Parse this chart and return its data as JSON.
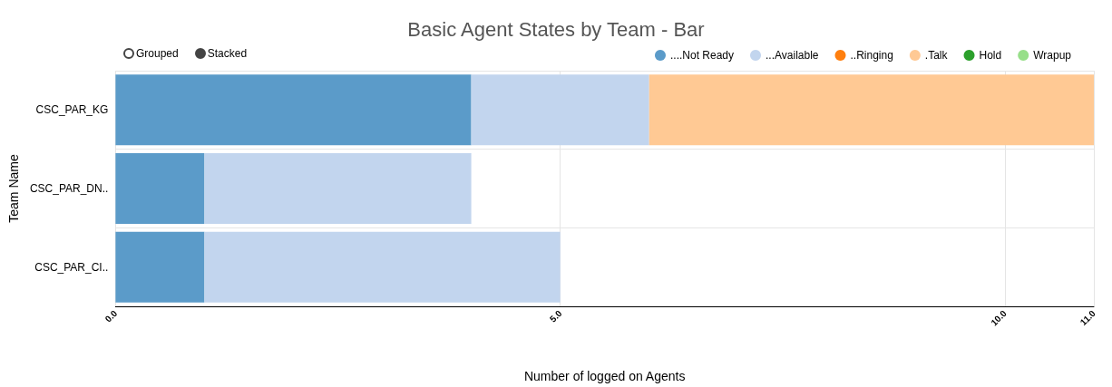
{
  "chart_data": {
    "type": "bar",
    "orientation": "horizontal",
    "stacked": true,
    "title": "Basic Agent States by Team - Bar",
    "xlabel": "Number of logged on Agents",
    "ylabel": "Team Name",
    "categories": [
      "CSC_PAR_KG",
      "CSC_PAR_DN..",
      "CSC_PAR_CI.."
    ],
    "series": [
      {
        "name": "....Not Ready",
        "color": "#5b9bc9",
        "values": [
          4,
          1,
          1
        ]
      },
      {
        "name": "...Available",
        "color": "#c2d5ee",
        "values": [
          2,
          3,
          4
        ]
      },
      {
        "name": "..Ringing",
        "color": "#ff7f0e",
        "values": [
          0,
          0,
          0
        ]
      },
      {
        "name": ".Talk",
        "color": "#ffc994",
        "values": [
          5,
          0,
          0
        ]
      },
      {
        "name": "Hold",
        "color": "#2ca02c",
        "values": [
          0,
          0,
          0
        ]
      },
      {
        "name": "Wrapup",
        "color": "#98df8a",
        "values": [
          0,
          0,
          0
        ]
      }
    ],
    "xlim": [
      0,
      11
    ],
    "xticks": [
      {
        "value": 0,
        "label": "0.0"
      },
      {
        "value": 5,
        "label": "5.0"
      },
      {
        "value": 10,
        "label": "10.0"
      },
      {
        "value": 11,
        "label": "11.0"
      }
    ],
    "grid": true,
    "legend": "top right",
    "annotations": [
      "Grouped",
      "Stacked"
    ]
  }
}
